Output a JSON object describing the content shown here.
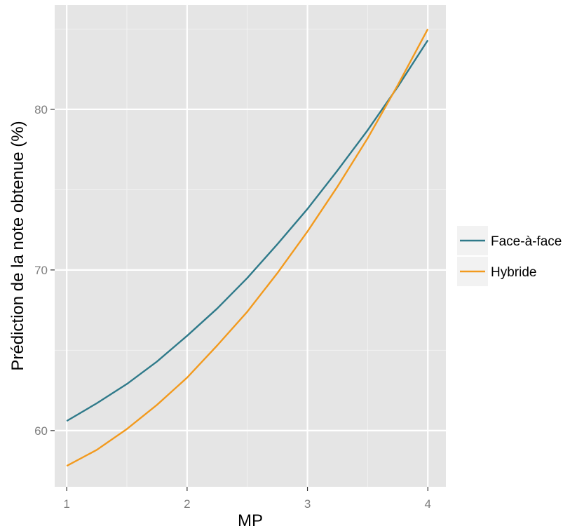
{
  "chart_data": {
    "type": "line",
    "title": "",
    "xlabel": "MP",
    "ylabel": "Prédiction de la note obtenue (%)",
    "xlim": [
      0.9,
      4.15
    ],
    "ylim": [
      56.5,
      86.5
    ],
    "x_ticks": [
      1,
      2,
      3,
      4
    ],
    "x_tick_labels": [
      "1",
      "2",
      "3",
      "4"
    ],
    "y_ticks": [
      60,
      70,
      80
    ],
    "y_tick_labels": [
      "60",
      "70",
      "80"
    ],
    "grid": true,
    "legend_position": "right",
    "x": [
      1,
      1.25,
      1.5,
      1.75,
      2,
      2.25,
      2.5,
      2.75,
      3,
      3.25,
      3.5,
      3.75,
      4
    ],
    "series": [
      {
        "name": "Face-à-face",
        "color": "#2f7a8a",
        "values": [
          60.6,
          61.7,
          62.9,
          64.3,
          65.9,
          67.6,
          69.5,
          71.6,
          73.8,
          76.2,
          78.7,
          81.4,
          84.3
        ]
      },
      {
        "name": "Hybride",
        "color": "#f29a1e",
        "values": [
          57.8,
          58.8,
          60.1,
          61.6,
          63.3,
          65.3,
          67.4,
          69.8,
          72.4,
          75.2,
          78.2,
          81.5,
          85.0
        ]
      }
    ]
  }
}
